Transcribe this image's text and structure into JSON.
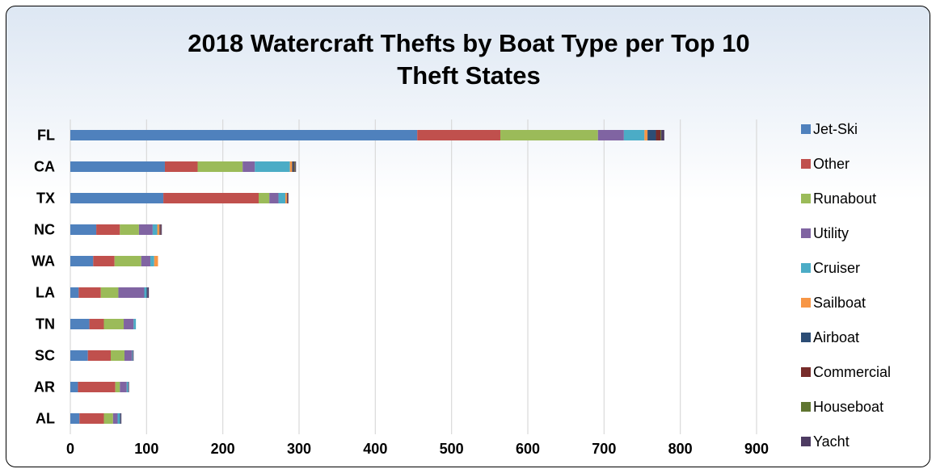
{
  "chart_data": {
    "type": "bar",
    "orientation": "horizontal",
    "stacked": true,
    "title": [
      "2018 Watercraft Thefts by Boat Type per Top 10",
      "Theft States"
    ],
    "xlabel": "",
    "ylabel": "",
    "xlim": [
      0,
      900
    ],
    "xticks": [
      "0",
      "100",
      "200",
      "300",
      "400",
      "500",
      "600",
      "700",
      "800",
      "900"
    ],
    "grid": "vertical",
    "legend_position": "right",
    "categories": [
      "FL",
      "CA",
      "TX",
      "NC",
      "WA",
      "LA",
      "TN",
      "SC",
      "AR",
      "AL"
    ],
    "series": [
      {
        "name": "Jet-Ski",
        "color": "#4f81bd",
        "values": [
          455,
          124,
          122,
          34,
          30,
          11,
          25,
          23,
          10,
          12
        ]
      },
      {
        "name": "Other",
        "color": "#c0504d",
        "values": [
          109,
          43,
          125,
          31,
          28,
          29,
          19,
          30,
          49,
          32
        ]
      },
      {
        "name": "Runabout",
        "color": "#9bbb59",
        "values": [
          128,
          59,
          14,
          25,
          35,
          23,
          26,
          18,
          6,
          12
        ]
      },
      {
        "name": "Utility",
        "color": "#8064a2",
        "values": [
          34,
          16,
          12,
          18,
          12,
          34,
          13,
          10,
          9,
          6
        ]
      },
      {
        "name": "Cruiser",
        "color": "#4bacc6",
        "values": [
          27,
          46,
          9,
          6,
          5,
          3,
          3,
          1,
          2,
          3
        ]
      },
      {
        "name": "Sailboat",
        "color": "#f79646",
        "values": [
          4,
          3,
          2,
          3,
          5,
          0,
          0,
          0,
          0,
          0
        ]
      },
      {
        "name": "Airboat",
        "color": "#2c4d75",
        "values": [
          11,
          2,
          0,
          1,
          0,
          1,
          0,
          0,
          0,
          1
        ]
      },
      {
        "name": "Commercial",
        "color": "#772c2a",
        "values": [
          6,
          1,
          1,
          1,
          0,
          0,
          0,
          0,
          0,
          0
        ]
      },
      {
        "name": "Houseboat",
        "color": "#5f7530",
        "values": [
          1,
          1,
          0,
          0,
          0,
          0,
          0,
          0,
          0,
          0
        ]
      },
      {
        "name": "Yacht",
        "color": "#4d3b62",
        "values": [
          4,
          1,
          1,
          1,
          0,
          2,
          0,
          1,
          1,
          1
        ]
      }
    ]
  }
}
